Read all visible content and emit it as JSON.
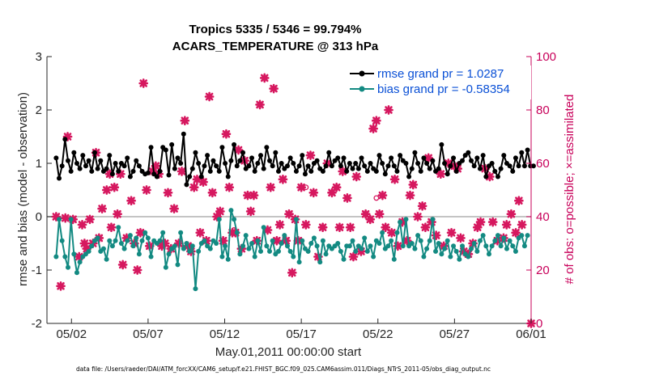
{
  "chart_data": {
    "type": "line",
    "title_line1": "Tropics 5335 / 5346 = 99.794%",
    "title_line2": "ACARS_TEMPERATURE @ 313 hPa",
    "xlabel": "May.01,2011 00:00:00 start",
    "ylabel": "rmse and bias (model - observation)",
    "ylabel_right": "# of obs: o=possible; ×=assimilated",
    "footnote": "data file: /Users/raeder/DAI/ATM_forcXX/CAM6_setup/f.e21.FHIST_BGC.f09_025.CAM6assim.011/Diags_NTrS_2011-05/obs_diag_output.nc",
    "xlim": [
      0.4,
      31.4
    ],
    "ylim": [
      -2,
      3
    ],
    "ylim_right": [
      0,
      100
    ],
    "x_ticks": [
      {
        "value": 2,
        "label": "05/02"
      },
      {
        "value": 7,
        "label": "05/07"
      },
      {
        "value": 12,
        "label": "05/12"
      },
      {
        "value": 17,
        "label": "05/17"
      },
      {
        "value": 22,
        "label": "05/22"
      },
      {
        "value": 27,
        "label": "05/27"
      },
      {
        "value": 32,
        "label": "06/01"
      }
    ],
    "y_ticks": [
      "-2",
      "-1",
      "0",
      "1",
      "2",
      "3"
    ],
    "y_ticks_right": [
      "0",
      "20",
      "40",
      "60",
      "80",
      "100"
    ],
    "colors": {
      "rmse": "#000000",
      "bias": "#138a82",
      "obs": "#d6185f",
      "legend_text": "#0a50d6",
      "right_axis": "#c8005a",
      "zero_line": "#b0b0b0"
    },
    "series": [
      {
        "name": "rmse grand pr = 1.0287",
        "axis": "left",
        "values": [
          1.1,
          0.72,
          0.95,
          1.45,
          1.05,
          0.85,
          1.2,
          1.0,
          0.9,
          1.15,
          0.95,
          1.05,
          0.85,
          1.2,
          0.9,
          1.05,
          0.85,
          0.9,
          1.15,
          0.8,
          1.0,
          0.85,
          1.0,
          0.95,
          1.1,
          0.75,
          0.85,
          1.05,
          0.95,
          0.85,
          0.8,
          0.82,
          1.3,
          0.8,
          0.75,
          0.85,
          1.3,
          1.25,
          0.78,
          1.35,
          0.9,
          1.1,
          1.0,
          1.55,
          0.6,
          0.75,
          0.9,
          1.2,
          1.0,
          0.75,
          0.95,
          1.15,
          0.85,
          1.05,
          0.95,
          0.85,
          1.3,
          1.0,
          0.75,
          1.05,
          1.35,
          0.95,
          1.05,
          1.2,
          0.9,
          0.95,
          1.1,
          0.85,
          1.0,
          1.15,
          0.9,
          1.3,
          1.05,
          0.95,
          1.2,
          0.85,
          1.0,
          0.9,
          0.95,
          1.1,
          1.0,
          0.85,
          0.95,
          1.15,
          0.8,
          0.95,
          0.85,
          1.0,
          1.05,
          0.9,
          0.85,
          0.95,
          1.2,
          0.95,
          1.05,
          1.1,
          0.95,
          1.1,
          0.85,
          1.0,
          0.9,
          1.0,
          0.9,
          1.1,
          0.95,
          0.85,
          1.0,
          0.9,
          0.85,
          1.15,
          1.0,
          0.8,
          0.95,
          1.1,
          0.95,
          0.85,
          1.15,
          1.05,
          1.0,
          0.75,
          0.9,
          1.2,
          1.0,
          0.85,
          1.1,
          1.0,
          0.9,
          1.05,
          0.85,
          0.9,
          1.35,
          1.0,
          0.8,
          0.95,
          1.1,
          0.85,
          1.0,
          1.05,
          1.15,
          1.2,
          1.05,
          0.95,
          1.1,
          0.9,
          1.15,
          0.75,
          0.95,
          1.0,
          0.85,
          0.75,
          0.9,
          1.15,
          1.0,
          0.95,
          0.85,
          1.1,
          0.95,
          1.2,
          0.95,
          1.25,
          0.95,
          0.95
        ],
        "x_start": 1.0,
        "x_step": 0.1935
      },
      {
        "name": "bias grand pr = -0.58354",
        "axis": "left",
        "values": [
          -0.75,
          -0.05,
          -0.45,
          -0.75,
          -0.95,
          -0.05,
          -0.7,
          -1.05,
          -0.85,
          -0.75,
          -0.7,
          -0.65,
          -0.55,
          -0.45,
          -0.4,
          -0.65,
          -0.6,
          -0.8,
          -0.45,
          -0.55,
          -0.45,
          -0.2,
          -0.5,
          -0.6,
          -0.45,
          -0.35,
          -0.55,
          -0.4,
          -0.7,
          -0.45,
          -0.3,
          -0.4,
          -0.75,
          -0.45,
          -0.5,
          -0.45,
          -0.3,
          -0.95,
          -0.7,
          -0.6,
          -0.55,
          -0.9,
          -0.3,
          -0.6,
          -0.5,
          -0.65,
          -0.55,
          -1.35,
          -0.65,
          -0.5,
          -0.45,
          -0.55,
          -0.6,
          -0.45,
          -0.5,
          -0.05,
          -0.75,
          -0.55,
          -0.8,
          0.12,
          -0.05,
          -0.3,
          -0.7,
          -0.55,
          -0.35,
          -0.6,
          -0.5,
          -0.75,
          -0.45,
          -0.65,
          -0.2,
          -0.55,
          -0.65,
          -0.45,
          -0.7,
          -0.65,
          -0.5,
          -0.35,
          -0.55,
          -0.65,
          -0.75,
          -0.05,
          -0.85,
          -0.45,
          -0.6,
          -0.65,
          -0.5,
          -0.4,
          -0.55,
          -0.85,
          -0.45,
          -0.7,
          -0.55,
          -0.6,
          -0.55,
          -0.5,
          -0.65,
          -0.8,
          -0.55,
          -0.55,
          -0.45,
          -0.65,
          -0.55,
          -0.6,
          -0.4,
          -0.65,
          -0.55,
          -0.75,
          -0.45,
          -0.5,
          -0.3,
          -0.6,
          -0.55,
          -0.45,
          -0.8,
          -0.3,
          -0.1,
          -0.55,
          -0.05,
          -0.55,
          -0.5,
          -0.6,
          -0.35,
          -0.45,
          -0.75,
          -0.6,
          -0.45,
          -0.05,
          -0.65,
          -0.5,
          -0.7,
          -0.6,
          -0.45,
          -0.75,
          -0.55,
          -0.65,
          -0.8,
          -0.55,
          -0.7,
          -0.75,
          -0.6,
          -0.5,
          -0.65,
          -0.45,
          -0.35,
          -0.55,
          -0.7,
          -0.55,
          -0.45,
          -0.35,
          -0.55,
          -0.4,
          -0.6,
          -0.45,
          -0.55,
          -0.65,
          -0.4,
          -0.35,
          -0.55,
          -0.35
        ],
        "x_start": 1.0,
        "x_step": 0.1935
      }
    ],
    "obs_assimilated": [
      [
        1.0,
        40.0
      ],
      [
        1.3,
        14.0
      ],
      [
        1.6,
        39.5
      ],
      [
        1.75,
        70.0
      ],
      [
        2.1,
        39.0
      ],
      [
        2.5,
        25.0
      ],
      [
        2.7,
        37.0
      ],
      [
        2.85,
        30.0
      ],
      [
        3.0,
        28.0
      ],
      [
        3.2,
        39.0
      ],
      [
        3.4,
        30.0
      ],
      [
        3.6,
        64.0
      ],
      [
        3.8,
        32.0
      ],
      [
        4.0,
        43.0
      ],
      [
        4.3,
        50.0
      ],
      [
        4.5,
        56.0
      ],
      [
        4.6,
        36.0
      ],
      [
        4.8,
        51.0
      ],
      [
        5.0,
        41.0
      ],
      [
        5.2,
        56.0
      ],
      [
        5.35,
        22.0
      ],
      [
        5.6,
        32.0
      ],
      [
        5.9,
        46.0
      ],
      [
        6.1,
        30.0
      ],
      [
        6.3,
        20.0
      ],
      [
        6.5,
        34.0
      ],
      [
        6.7,
        90.0
      ],
      [
        6.9,
        50.0
      ],
      [
        7.1,
        29.0
      ],
      [
        7.3,
        57.0
      ],
      [
        7.5,
        59.0
      ],
      [
        7.7,
        56.0
      ],
      [
        7.9,
        29.0
      ],
      [
        8.1,
        30.0
      ],
      [
        8.3,
        49.0
      ],
      [
        8.5,
        28.0
      ],
      [
        8.7,
        43.0
      ],
      [
        9.0,
        30.0
      ],
      [
        9.2,
        57.0
      ],
      [
        9.4,
        76.0
      ],
      [
        9.6,
        29.0
      ],
      [
        9.8,
        27.0
      ],
      [
        10.0,
        51.0
      ],
      [
        10.2,
        54.0
      ],
      [
        10.4,
        34.0
      ],
      [
        10.6,
        53.0
      ],
      [
        10.8,
        31.0
      ],
      [
        11.0,
        85.0
      ],
      [
        11.2,
        49.0
      ],
      [
        11.5,
        40.0
      ],
      [
        11.7,
        42.0
      ],
      [
        11.9,
        31.0
      ],
      [
        12.1,
        71.0
      ],
      [
        12.3,
        51.0
      ],
      [
        12.5,
        34.0
      ],
      [
        12.7,
        34.0
      ],
      [
        12.9,
        65.0
      ],
      [
        13.1,
        28.0
      ],
      [
        13.3,
        61.0
      ],
      [
        13.5,
        48.0
      ],
      [
        13.7,
        42.0
      ],
      [
        13.9,
        48.0
      ],
      [
        14.1,
        31.0
      ],
      [
        14.3,
        82.0
      ],
      [
        14.6,
        92.0
      ],
      [
        14.8,
        35.0
      ],
      [
        15.0,
        51.0
      ],
      [
        15.2,
        88.0
      ],
      [
        15.4,
        31.0
      ],
      [
        15.6,
        37.0
      ],
      [
        15.8,
        54.0
      ],
      [
        16.0,
        31.0
      ],
      [
        16.2,
        41.0
      ],
      [
        16.4,
        19.0
      ],
      [
        16.6,
        39.0
      ],
      [
        16.8,
        31.0
      ],
      [
        17.0,
        51.0
      ],
      [
        17.3,
        37.0
      ],
      [
        17.6,
        63.0
      ],
      [
        17.8,
        49.0
      ],
      [
        18.1,
        25.0
      ],
      [
        18.4,
        36.0
      ],
      [
        18.7,
        60.0
      ],
      [
        19.0,
        49.0
      ],
      [
        19.3,
        51.0
      ],
      [
        19.5,
        36.0
      ],
      [
        19.7,
        57.0
      ],
      [
        20.0,
        47.0
      ],
      [
        20.2,
        36.0
      ],
      [
        20.4,
        25.0
      ],
      [
        20.6,
        55.0
      ],
      [
        20.9,
        27.0
      ],
      [
        21.2,
        41.0
      ],
      [
        21.5,
        39.0
      ],
      [
        21.7,
        73.0
      ],
      [
        21.9,
        76.0
      ],
      [
        22.1,
        41.0
      ],
      [
        22.3,
        48.0
      ],
      [
        22.5,
        36.0
      ],
      [
        22.7,
        80.0
      ],
      [
        22.9,
        34.0
      ],
      [
        23.1,
        54.0
      ],
      [
        23.3,
        29.0
      ],
      [
        23.6,
        38.0
      ],
      [
        23.9,
        31.0
      ],
      [
        24.1,
        48.0
      ],
      [
        24.3,
        52.0
      ],
      [
        24.6,
        40.0
      ],
      [
        24.9,
        44.0
      ],
      [
        25.1,
        36.0
      ],
      [
        25.3,
        62.0
      ],
      [
        25.5,
        38.0
      ],
      [
        25.8,
        33.0
      ],
      [
        26.1,
        56.0
      ],
      [
        26.3,
        29.0
      ],
      [
        26.6,
        60.0
      ],
      [
        26.8,
        34.0
      ],
      [
        27.0,
        59.0
      ],
      [
        27.2,
        58.0
      ],
      [
        27.4,
        32.0
      ],
      [
        27.6,
        27.0
      ],
      [
        27.9,
        26.0
      ],
      [
        28.2,
        30.0
      ],
      [
        28.5,
        36.0
      ],
      [
        28.7,
        38.0
      ],
      [
        29.0,
        58.0
      ],
      [
        29.3,
        55.0
      ],
      [
        29.5,
        38.0
      ],
      [
        29.8,
        31.0
      ],
      [
        30.0,
        87.0
      ],
      [
        30.2,
        32.0
      ],
      [
        30.4,
        37.0
      ],
      [
        30.7,
        41.0
      ],
      [
        31.0,
        34.0
      ],
      [
        31.2,
        46.0
      ],
      [
        31.4,
        37.0
      ],
      [
        32.0,
        0.0
      ]
    ],
    "obs_possible": [
      [
        12.6,
        35.0
      ],
      [
        17.3,
        51.0
      ],
      [
        21.9,
        47.0
      ]
    ]
  }
}
